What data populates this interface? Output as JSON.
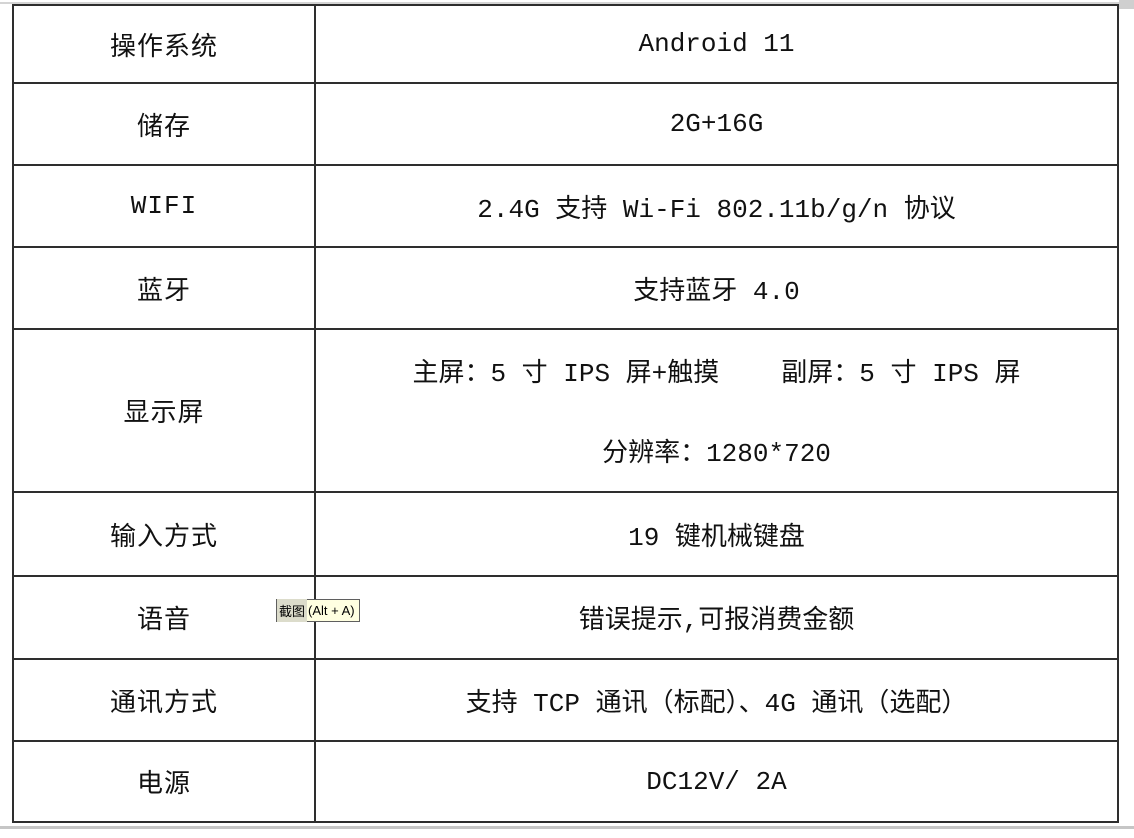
{
  "colors": {
    "table_border": "#2e2e2e",
    "text": "#111111",
    "tooltip_background": "#ffffe1",
    "tooltip_border": "#5f5f5f",
    "page_edge_gray": "#c6c6c6"
  },
  "table": {
    "rows": [
      {
        "label": "操作系统",
        "value": "Android 11"
      },
      {
        "label": "储存",
        "value": "2G+16G"
      },
      {
        "label": "WIFI",
        "value": "2.4G 支持 Wi-Fi 802.11b/g/n 协议"
      },
      {
        "label": "蓝牙",
        "value": "支持蓝牙 4.0"
      },
      {
        "label": "显示屏"
      },
      {
        "label": "输入方式",
        "value": "19 键机械键盘"
      },
      {
        "label": "语音",
        "value": "错误提示,可报消费金额"
      },
      {
        "label": "通讯方式",
        "value": "支持 TCP 通讯（标配）、4G 通讯（选配）"
      },
      {
        "label": "电源",
        "value": "DC12V/ 2A"
      }
    ],
    "display_row": {
      "main_screen": "主屏：5 寸 IPS 屏+触摸",
      "secondary_screen": "副屏：5 寸 IPS 屏",
      "resolution": "分辨率：1280*720"
    }
  },
  "tooltip": {
    "action": "截图",
    "shortcut": "(Alt + A)"
  }
}
